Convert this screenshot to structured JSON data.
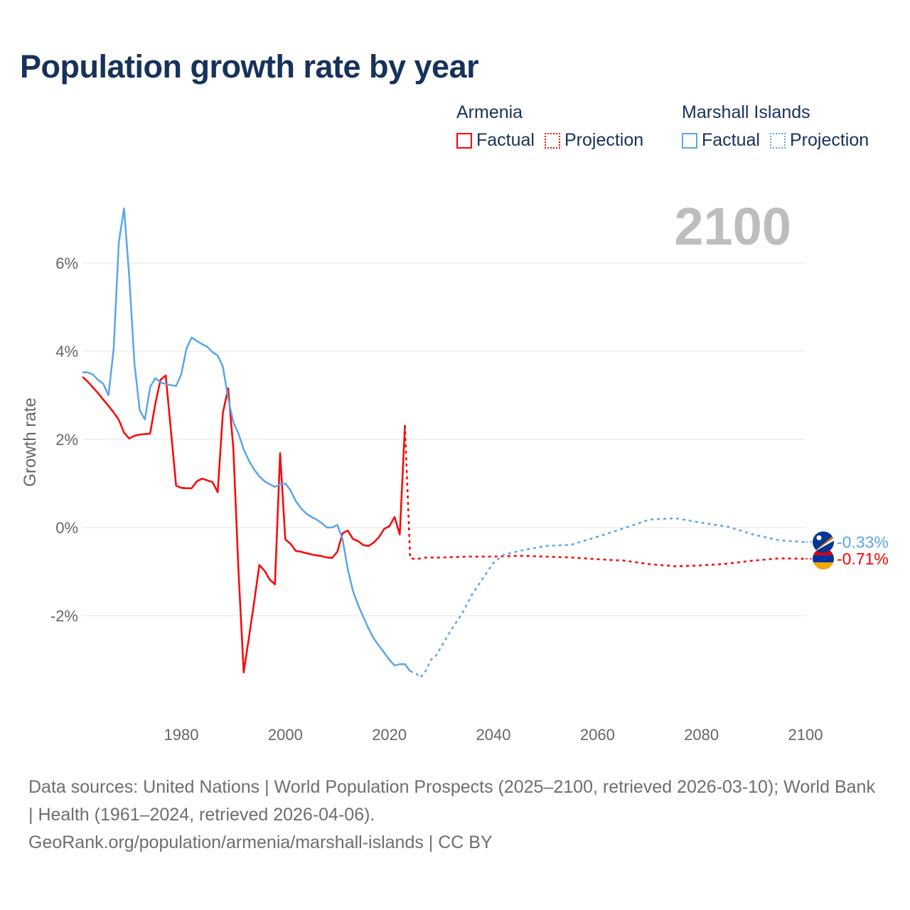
{
  "title": "Population growth rate by year",
  "legend": [
    {
      "country": "Armenia",
      "color": "#ff0000",
      "factual": "Factual",
      "projection": "Projection"
    },
    {
      "country": "Marshall Islands",
      "color": "#5aa5ec",
      "factual": "Factual",
      "projection": "Projection"
    }
  ],
  "current_year": "2100",
  "footer": {
    "sources": "Data sources: United Nations | World Population Prospects (2025–2100, retrieved 2026-03-10); World Bank | Health (1961–2024, retrieved 2026-04-06).",
    "url": "GeoRank.org/population/armenia/marshall-islands | CC BY"
  },
  "chart_data": {
    "type": "line",
    "title": "Population growth rate by year",
    "xlabel": "",
    "ylabel": "Growth rate",
    "xlim": [
      1961,
      2100
    ],
    "ylim": [
      -4,
      7.5
    ],
    "x_ticks": [
      1980,
      2000,
      2020,
      2040,
      2060,
      2080,
      2100
    ],
    "x_tick_labels": [
      "1980",
      "2000",
      "2020",
      "2040",
      "2060",
      "2080",
      "2100"
    ],
    "y_ticks": [
      6,
      4,
      2,
      0,
      -2
    ],
    "y_tick_labels": [
      "6%",
      "4%",
      "2%",
      "0%",
      "-2%"
    ],
    "grid": true,
    "legend_position": "top-right",
    "series": [
      {
        "name": "Armenia",
        "color": "#ff0000",
        "end_label": "-0.71%",
        "factual": [
          [
            1961,
            3.42
          ],
          [
            1962,
            3.31
          ],
          [
            1963,
            3.18
          ],
          [
            1964,
            3.05
          ],
          [
            1965,
            2.9
          ],
          [
            1966,
            2.76
          ],
          [
            1967,
            2.61
          ],
          [
            1968,
            2.44
          ],
          [
            1969,
            2.15
          ],
          [
            1970,
            2.02
          ],
          [
            1971,
            2.08
          ],
          [
            1972,
            2.11
          ],
          [
            1973,
            2.12
          ],
          [
            1974,
            2.13
          ],
          [
            1975,
            2.8
          ],
          [
            1976,
            3.35
          ],
          [
            1977,
            3.45
          ],
          [
            1978,
            2.2
          ],
          [
            1979,
            0.95
          ],
          [
            1980,
            0.9
          ],
          [
            1981,
            0.89
          ],
          [
            1982,
            0.89
          ],
          [
            1983,
            1.05
          ],
          [
            1984,
            1.11
          ],
          [
            1985,
            1.07
          ],
          [
            1986,
            1.03
          ],
          [
            1987,
            0.8
          ],
          [
            1988,
            2.6
          ],
          [
            1989,
            3.16
          ],
          [
            1990,
            1.8
          ],
          [
            1991,
            -1.0
          ],
          [
            1992,
            -3.29
          ],
          [
            1993,
            -2.5
          ],
          [
            1994,
            -1.7
          ],
          [
            1995,
            -0.85
          ],
          [
            1996,
            -0.98
          ],
          [
            1997,
            -1.18
          ],
          [
            1998,
            -1.29
          ],
          [
            1999,
            1.69
          ],
          [
            2000,
            -0.27
          ],
          [
            2001,
            -0.37
          ],
          [
            2002,
            -0.53
          ],
          [
            2003,
            -0.55
          ],
          [
            2004,
            -0.58
          ],
          [
            2005,
            -0.61
          ],
          [
            2006,
            -0.63
          ],
          [
            2007,
            -0.65
          ],
          [
            2008,
            -0.68
          ],
          [
            2009,
            -0.69
          ],
          [
            2010,
            -0.55
          ],
          [
            2011,
            -0.13
          ],
          [
            2012,
            -0.07
          ],
          [
            2013,
            -0.26
          ],
          [
            2014,
            -0.31
          ],
          [
            2015,
            -0.4
          ],
          [
            2016,
            -0.42
          ],
          [
            2017,
            -0.34
          ],
          [
            2018,
            -0.22
          ],
          [
            2019,
            -0.03
          ],
          [
            2020,
            0.03
          ],
          [
            2021,
            0.24
          ],
          [
            2022,
            -0.16
          ],
          [
            2023,
            2.32
          ]
        ],
        "projection": [
          [
            2024,
            -0.69
          ],
          [
            2025,
            -0.72
          ],
          [
            2027,
            -0.68
          ],
          [
            2030,
            -0.68
          ],
          [
            2035,
            -0.66
          ],
          [
            2040,
            -0.66
          ],
          [
            2045,
            -0.64
          ],
          [
            2050,
            -0.66
          ],
          [
            2055,
            -0.68
          ],
          [
            2060,
            -0.72
          ],
          [
            2065,
            -0.75
          ],
          [
            2070,
            -0.83
          ],
          [
            2075,
            -0.88
          ],
          [
            2080,
            -0.86
          ],
          [
            2085,
            -0.82
          ],
          [
            2090,
            -0.75
          ],
          [
            2095,
            -0.7
          ],
          [
            2100,
            -0.71
          ]
        ]
      },
      {
        "name": "Marshall Islands",
        "color": "#5aa5ec",
        "end_label": "-0.33%",
        "factual": [
          [
            1961,
            3.52
          ],
          [
            1962,
            3.52
          ],
          [
            1963,
            3.47
          ],
          [
            1964,
            3.35
          ],
          [
            1965,
            3.26
          ],
          [
            1966,
            3.0
          ],
          [
            1967,
            4.06
          ],
          [
            1968,
            6.48
          ],
          [
            1969,
            7.24
          ],
          [
            1970,
            5.68
          ],
          [
            1971,
            3.71
          ],
          [
            1972,
            2.66
          ],
          [
            1973,
            2.45
          ],
          [
            1974,
            3.18
          ],
          [
            1975,
            3.39
          ],
          [
            1976,
            3.29
          ],
          [
            1977,
            3.26
          ],
          [
            1978,
            3.23
          ],
          [
            1979,
            3.21
          ],
          [
            1980,
            3.48
          ],
          [
            1981,
            4.06
          ],
          [
            1982,
            4.31
          ],
          [
            1983,
            4.23
          ],
          [
            1984,
            4.16
          ],
          [
            1985,
            4.1
          ],
          [
            1986,
            3.98
          ],
          [
            1987,
            3.9
          ],
          [
            1988,
            3.65
          ],
          [
            1989,
            2.93
          ],
          [
            1990,
            2.39
          ],
          [
            1991,
            2.13
          ],
          [
            1992,
            1.77
          ],
          [
            1993,
            1.52
          ],
          [
            1994,
            1.32
          ],
          [
            1995,
            1.16
          ],
          [
            1996,
            1.05
          ],
          [
            1997,
            0.98
          ],
          [
            1998,
            0.92
          ],
          [
            1999,
            0.98
          ],
          [
            2000,
            1.0
          ],
          [
            2001,
            0.84
          ],
          [
            2002,
            0.6
          ],
          [
            2003,
            0.44
          ],
          [
            2004,
            0.32
          ],
          [
            2005,
            0.24
          ],
          [
            2006,
            0.18
          ],
          [
            2007,
            0.1
          ],
          [
            2008,
            0.0
          ],
          [
            2009,
            0.0
          ],
          [
            2010,
            0.06
          ],
          [
            2011,
            -0.26
          ],
          [
            2012,
            -0.94
          ],
          [
            2013,
            -1.44
          ],
          [
            2014,
            -1.76
          ],
          [
            2015,
            -2.03
          ],
          [
            2016,
            -2.29
          ],
          [
            2017,
            -2.52
          ],
          [
            2018,
            -2.68
          ],
          [
            2019,
            -2.84
          ],
          [
            2020,
            -3.0
          ],
          [
            2021,
            -3.13
          ],
          [
            2022,
            -3.1
          ],
          [
            2023,
            -3.1
          ],
          [
            2024,
            -3.26
          ]
        ],
        "projection": [
          [
            2025,
            -3.3
          ],
          [
            2026,
            -3.4
          ],
          [
            2027,
            -3.25
          ],
          [
            2028,
            -3.0
          ],
          [
            2029,
            -2.9
          ],
          [
            2030,
            -2.7
          ],
          [
            2032,
            -2.3
          ],
          [
            2034,
            -1.95
          ],
          [
            2036,
            -1.5
          ],
          [
            2038,
            -1.15
          ],
          [
            2040,
            -0.8
          ],
          [
            2042,
            -0.62
          ],
          [
            2045,
            -0.53
          ],
          [
            2050,
            -0.42
          ],
          [
            2055,
            -0.39
          ],
          [
            2060,
            -0.21
          ],
          [
            2065,
            -0.02
          ],
          [
            2070,
            0.18
          ],
          [
            2075,
            0.21
          ],
          [
            2080,
            0.11
          ],
          [
            2085,
            0.02
          ],
          [
            2090,
            -0.16
          ],
          [
            2095,
            -0.29
          ],
          [
            2100,
            -0.33
          ]
        ]
      }
    ]
  }
}
